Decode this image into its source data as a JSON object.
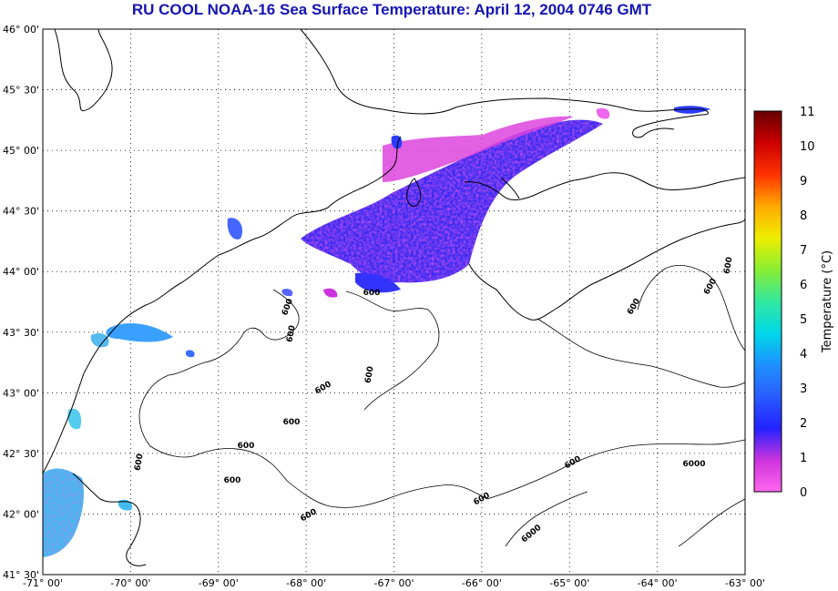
{
  "title": "RU COOL  NOAA-16  Sea Surface Temperature:  April 12, 2004 0746 GMT",
  "colorbar": {
    "label": "Temperature (°C)",
    "min": 0,
    "max": 11,
    "ticks": [
      "0",
      "1",
      "2",
      "3",
      "4",
      "5",
      "6",
      "7",
      "8",
      "9",
      "10",
      "11"
    ],
    "stops": [
      "#ff66ee",
      "#cc33dd",
      "#2222ff",
      "#2a5cff",
      "#1e90ff",
      "#00d8e8",
      "#33e8a0",
      "#88ee33",
      "#eeee00",
      "#ffaa00",
      "#ff3300",
      "#cc0000",
      "#660000"
    ]
  },
  "map": {
    "lon_min": -71,
    "lon_max": -63,
    "lat_min": 41.5,
    "lat_max": 46,
    "lon_labels": [
      "-71° 00'",
      "-70° 00'",
      "-69° 00'",
      "-68° 00'",
      "-67° 00'",
      "-66° 00'",
      "-65° 00'",
      "-64° 00'",
      "-63° 00'"
    ],
    "lat_labels": [
      "46° 00'",
      "45° 30'",
      "45° 00'",
      "44° 30'",
      "44° 00'",
      "43° 30'",
      "43° 00'",
      "42° 30'",
      "42° 00'",
      "41° 30'"
    ],
    "contour_labels": [
      "600",
      "600",
      "600",
      "600",
      "600",
      "600",
      "600",
      "600",
      "600",
      "600",
      "600",
      "600",
      "600",
      "600",
      "600",
      "6000",
      "6000"
    ]
  }
}
